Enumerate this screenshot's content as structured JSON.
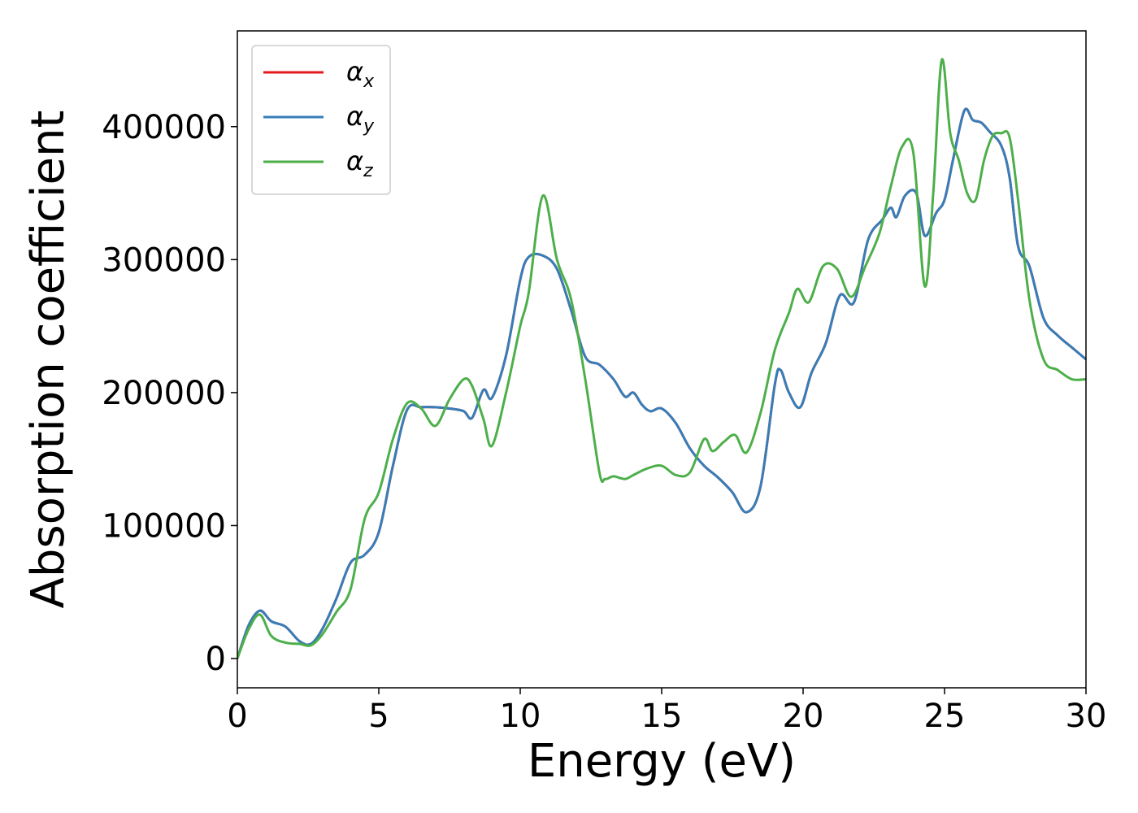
{
  "chart_data": {
    "type": "line",
    "title": "",
    "xlabel": "Energy (eV)",
    "ylabel": "Absorption coefficient",
    "xlim": [
      0,
      30
    ],
    "ylim": [
      -22000,
      472000
    ],
    "xticks": [
      0,
      5,
      10,
      15,
      20,
      25,
      30
    ],
    "yticks": [
      0,
      100000,
      200000,
      300000,
      400000
    ],
    "grid": false,
    "legend_position": "top-left",
    "series": [
      {
        "name": "α",
        "subscript": "x",
        "color": "#e41a1c",
        "x": [
          0,
          0.4,
          0.8,
          1.2,
          1.7,
          2.2,
          2.6,
          3.0,
          3.5,
          4.0,
          4.5,
          5.0,
          5.5,
          6.0,
          6.5,
          7.0,
          7.5,
          8.0,
          8.3,
          8.7,
          9.0,
          9.5,
          10.0,
          10.3,
          10.8,
          11.3,
          11.8,
          12.3,
          12.8,
          13.3,
          13.7,
          14.0,
          14.3,
          14.6,
          15.0,
          15.5,
          16.0,
          16.5,
          17.0,
          17.5,
          18.0,
          18.5,
          19.0,
          19.2,
          19.5,
          19.9,
          20.3,
          20.8,
          21.3,
          21.8,
          22.3,
          22.8,
          23.1,
          23.3,
          23.6,
          24.0,
          24.3,
          24.7,
          25.0,
          25.3,
          25.7,
          26.0,
          26.3,
          26.6,
          27.0,
          27.3,
          27.6,
          28.0,
          28.5,
          29.0,
          29.5,
          30.0
        ],
        "y": [
          0,
          25000,
          36000,
          28000,
          24000,
          13000,
          11000,
          22000,
          45000,
          72000,
          78000,
          95000,
          145000,
          187000,
          189000,
          189000,
          188000,
          186000,
          181000,
          202000,
          196000,
          228000,
          285000,
          302000,
          303000,
          293000,
          262000,
          227000,
          221000,
          210000,
          197000,
          200000,
          191000,
          186000,
          188000,
          177000,
          158000,
          145000,
          136000,
          125000,
          110000,
          130000,
          206000,
          217000,
          200000,
          189000,
          215000,
          237000,
          273000,
          268000,
          315000,
          330000,
          339000,
          332000,
          348000,
          350000,
          318000,
          335000,
          345000,
          375000,
          412000,
          405000,
          403000,
          396000,
          386000,
          362000,
          310000,
          295000,
          256000,
          243000,
          234000,
          225000
        ]
      },
      {
        "name": "α",
        "subscript": "y",
        "color": "#377eb8",
        "x": [
          0,
          0.4,
          0.8,
          1.2,
          1.7,
          2.2,
          2.6,
          3.0,
          3.5,
          4.0,
          4.5,
          5.0,
          5.5,
          6.0,
          6.5,
          7.0,
          7.5,
          8.0,
          8.3,
          8.7,
          9.0,
          9.5,
          10.0,
          10.3,
          10.8,
          11.3,
          11.8,
          12.3,
          12.8,
          13.3,
          13.7,
          14.0,
          14.3,
          14.6,
          15.0,
          15.5,
          16.0,
          16.5,
          17.0,
          17.5,
          18.0,
          18.5,
          19.0,
          19.2,
          19.5,
          19.9,
          20.3,
          20.8,
          21.3,
          21.8,
          22.3,
          22.8,
          23.1,
          23.3,
          23.6,
          24.0,
          24.3,
          24.7,
          25.0,
          25.3,
          25.7,
          26.0,
          26.3,
          26.6,
          27.0,
          27.3,
          27.6,
          28.0,
          28.5,
          29.0,
          29.5,
          30.0
        ],
        "y": [
          0,
          25000,
          36000,
          28000,
          24000,
          13000,
          11000,
          22000,
          45000,
          72000,
          78000,
          95000,
          145000,
          187000,
          189000,
          189000,
          188000,
          186000,
          181000,
          202000,
          196000,
          228000,
          285000,
          302000,
          303000,
          293000,
          262000,
          227000,
          221000,
          210000,
          197000,
          200000,
          191000,
          186000,
          188000,
          177000,
          158000,
          145000,
          136000,
          125000,
          110000,
          130000,
          206000,
          217000,
          200000,
          189000,
          215000,
          237000,
          273000,
          268000,
          315000,
          330000,
          339000,
          332000,
          348000,
          350000,
          318000,
          335000,
          345000,
          375000,
          412000,
          405000,
          403000,
          396000,
          386000,
          362000,
          310000,
          295000,
          256000,
          243000,
          234000,
          225000
        ]
      },
      {
        "name": "α",
        "subscript": "z",
        "color": "#4daf4a",
        "x": [
          0,
          0.4,
          0.8,
          1.2,
          1.7,
          2.2,
          2.6,
          3.0,
          3.5,
          4.0,
          4.5,
          5.0,
          5.5,
          6.0,
          6.5,
          7.0,
          7.5,
          8.0,
          8.3,
          8.7,
          9.0,
          9.5,
          10.0,
          10.3,
          10.8,
          11.3,
          11.8,
          12.3,
          12.8,
          13.0,
          13.3,
          13.7,
          14.0,
          14.5,
          15.0,
          15.5,
          16.0,
          16.5,
          16.8,
          17.2,
          17.6,
          18.0,
          18.5,
          19.0,
          19.5,
          19.8,
          20.2,
          20.7,
          21.2,
          21.7,
          22.2,
          22.7,
          23.1,
          23.5,
          23.9,
          24.3,
          24.6,
          24.9,
          25.2,
          25.5,
          25.8,
          26.1,
          26.4,
          26.7,
          27.0,
          27.3,
          27.6,
          28.0,
          28.5,
          29.0,
          29.5,
          30.0
        ],
        "y": [
          0,
          22000,
          33000,
          17000,
          12000,
          11000,
          10000,
          18000,
          35000,
          52000,
          105000,
          125000,
          165000,
          192000,
          188000,
          175000,
          195000,
          210000,
          205000,
          180000,
          160000,
          200000,
          250000,
          275000,
          348000,
          300000,
          270000,
          210000,
          140000,
          135000,
          137000,
          135000,
          138000,
          143000,
          145000,
          138000,
          140000,
          165000,
          156000,
          163000,
          168000,
          155000,
          185000,
          232000,
          260000,
          278000,
          268000,
          295000,
          293000,
          272000,
          295000,
          320000,
          355000,
          385000,
          380000,
          280000,
          350000,
          450000,
          395000,
          375000,
          350000,
          345000,
          375000,
          393000,
          395000,
          392000,
          345000,
          270000,
          225000,
          217000,
          210000,
          210000
        ]
      }
    ]
  }
}
